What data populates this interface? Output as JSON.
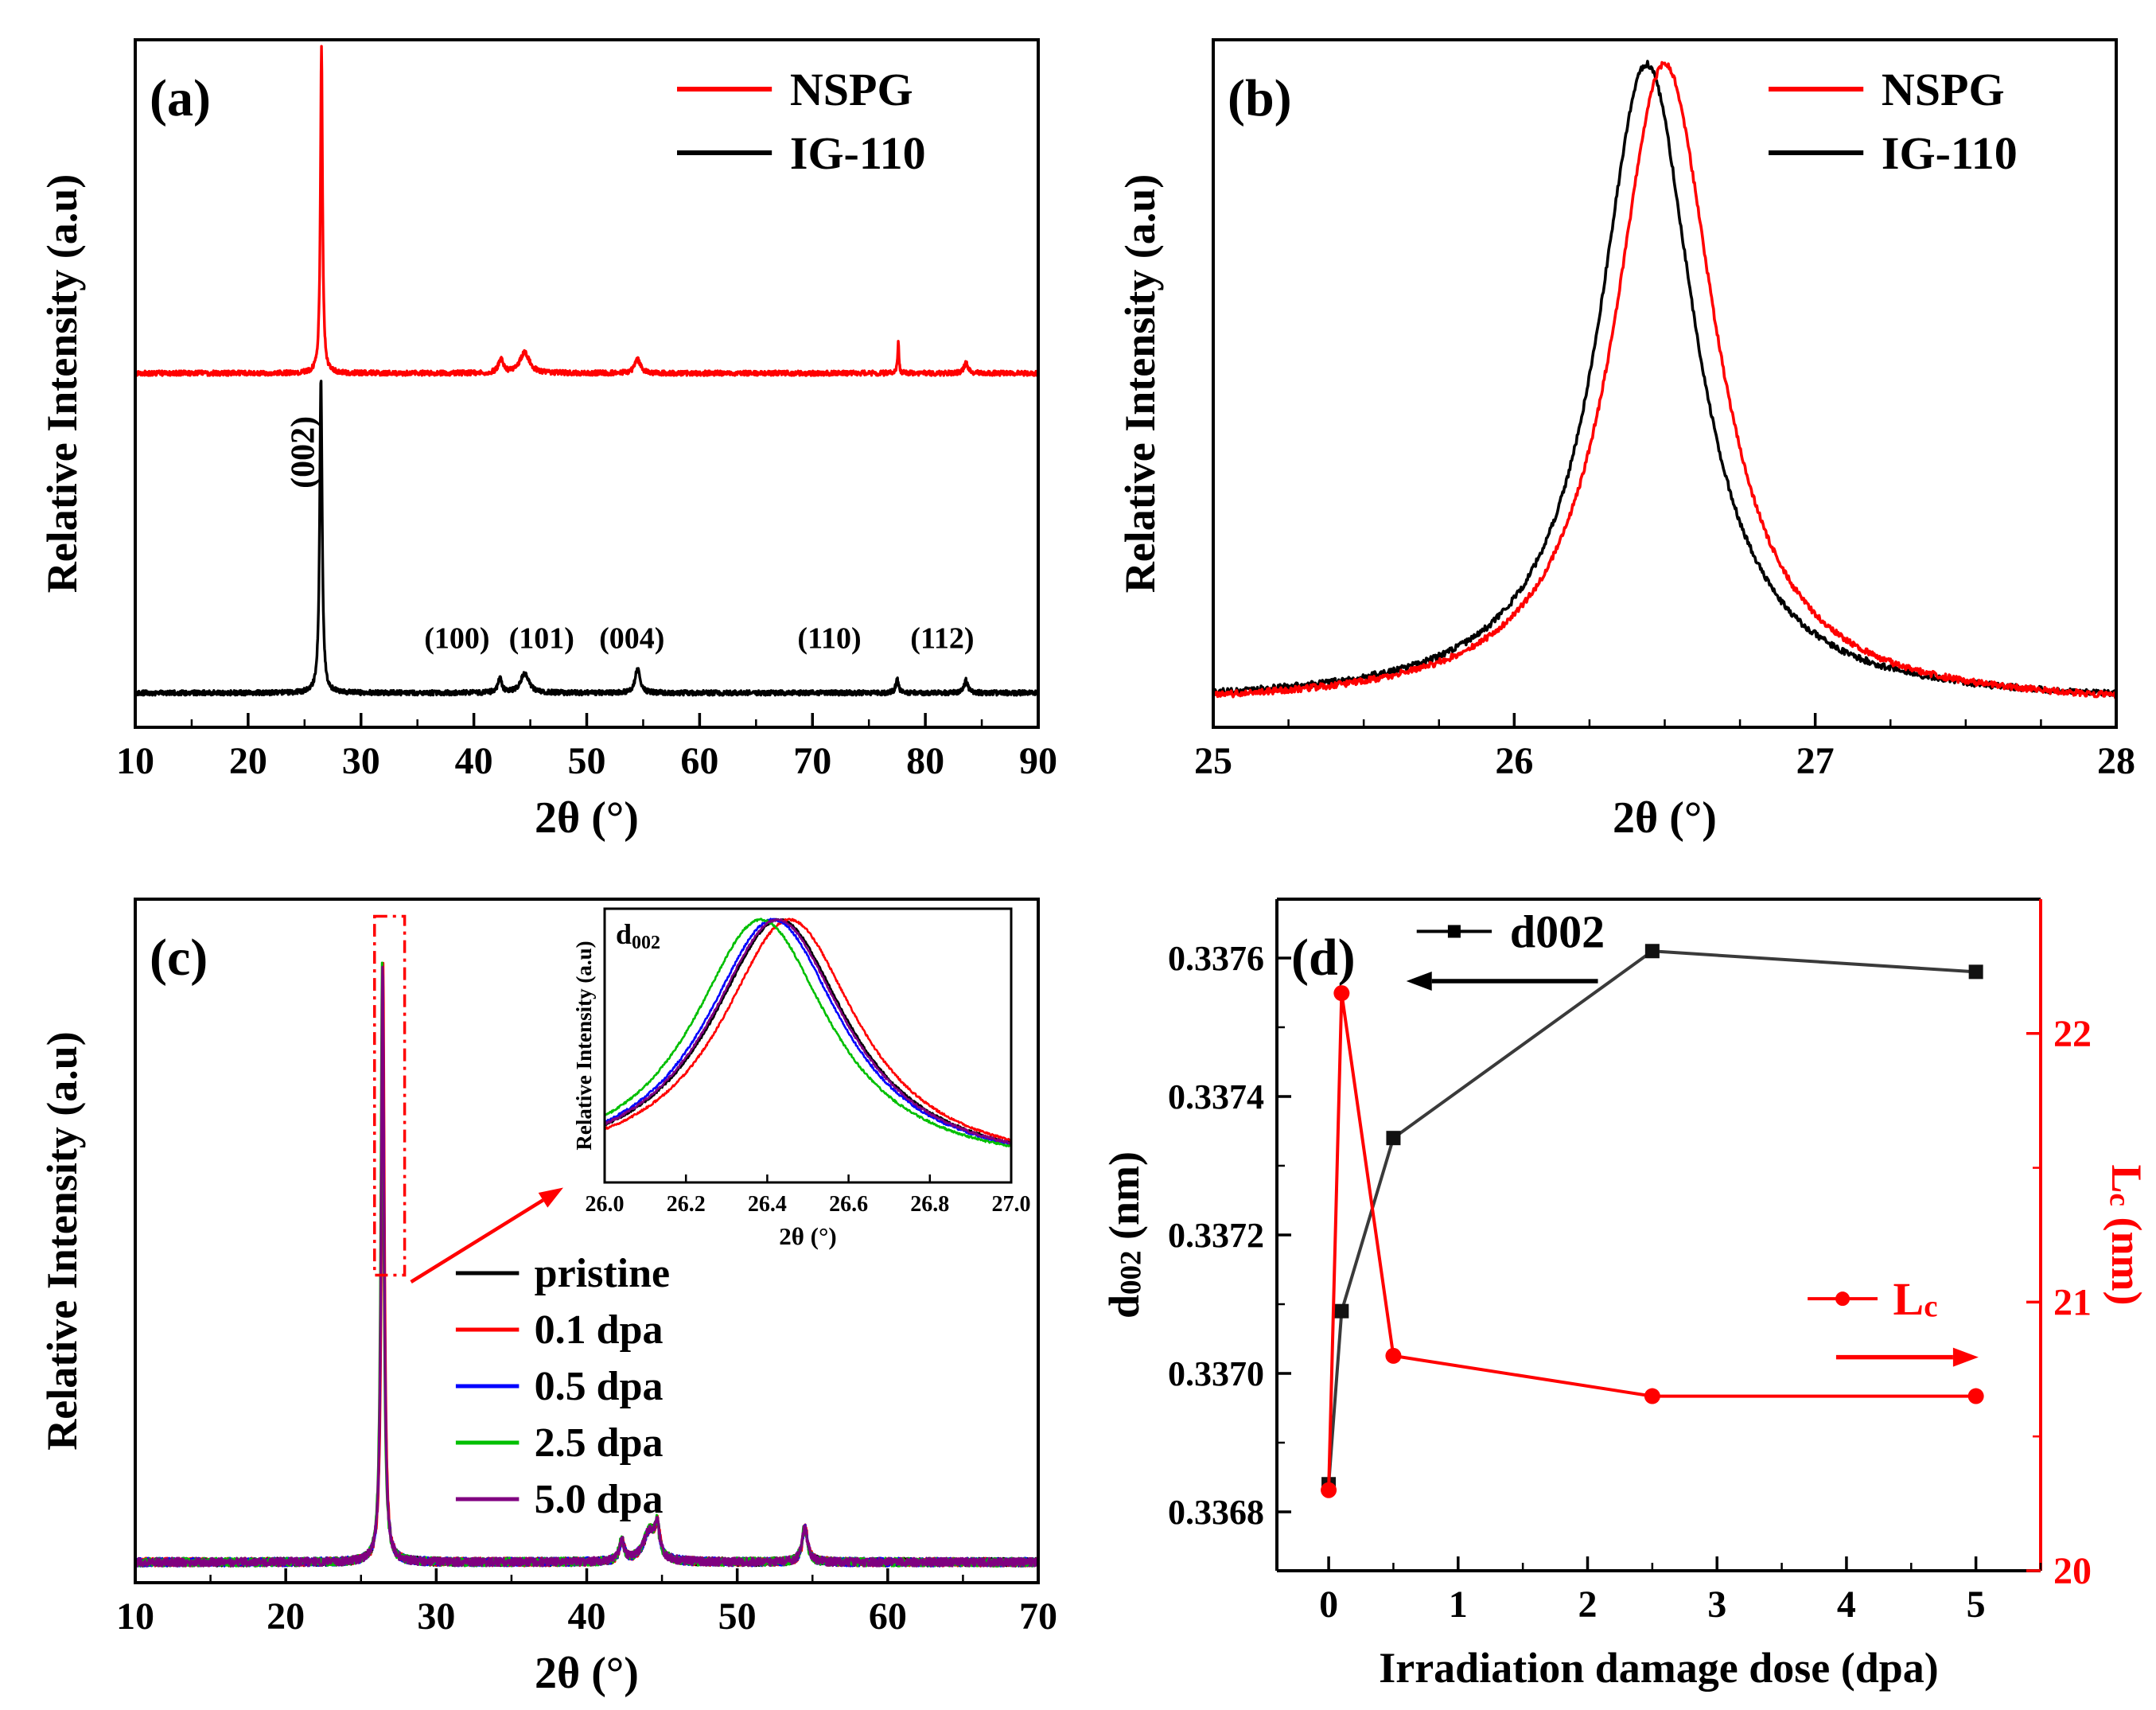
{
  "figure": {
    "background": "#ffffff"
  },
  "chart_data": [
    {
      "id": "a",
      "type": "line",
      "panel_label": "(a)",
      "xlabel": "2θ (°)",
      "ylabel": "Relative Intensity (a.u)",
      "xlim": [
        10,
        90
      ],
      "xticks": [
        10,
        20,
        30,
        40,
        50,
        60,
        70,
        80,
        90
      ],
      "minor_step": 5,
      "samples": 2400,
      "legend": [
        {
          "name": "NSPG",
          "color": "#ff0000"
        },
        {
          "name": "IG-110",
          "color": "#000000"
        }
      ],
      "series": [
        {
          "name": "IG-110",
          "color": "#000000",
          "offset": 0.05,
          "noise": 0.0035,
          "peaks": [
            {
              "c": 26.45,
              "h": 0.46,
              "g": 0.13
            },
            {
              "c": 42.3,
              "h": 0.022,
              "g": 0.2
            },
            {
              "c": 44.5,
              "h": 0.028,
              "g": 0.45
            },
            {
              "c": 54.5,
              "h": 0.035,
              "g": 0.25
            },
            {
              "c": 77.5,
              "h": 0.02,
              "g": 0.15
            },
            {
              "c": 83.6,
              "h": 0.018,
              "g": 0.2
            }
          ]
        },
        {
          "name": "NSPG",
          "color": "#ff0000",
          "offset": 0.515,
          "noise": 0.0035,
          "peaks": [
            {
              "c": 26.5,
              "h": 0.475,
              "g": 0.11
            },
            {
              "c": 42.4,
              "h": 0.02,
              "g": 0.25
            },
            {
              "c": 44.5,
              "h": 0.03,
              "g": 0.5
            },
            {
              "c": 54.5,
              "h": 0.02,
              "g": 0.3
            },
            {
              "c": 77.6,
              "h": 0.045,
              "g": 0.07
            },
            {
              "c": 83.6,
              "h": 0.015,
              "g": 0.2
            }
          ]
        }
      ],
      "peak_labels": [
        {
          "text": "(002)",
          "x": 24.9,
          "yfrac": 0.4,
          "rotate": -90
        },
        {
          "text": "(100)",
          "x": 38.5,
          "yfrac": 0.115
        },
        {
          "text": "(101)",
          "x": 46.0,
          "yfrac": 0.115
        },
        {
          "text": "(004)",
          "x": 54.0,
          "yfrac": 0.115
        },
        {
          "text": "(110)",
          "x": 71.5,
          "yfrac": 0.115
        },
        {
          "text": "(112)",
          "x": 81.5,
          "yfrac": 0.115
        }
      ]
    },
    {
      "id": "b",
      "type": "line",
      "panel_label": "(b)",
      "xlabel": "2θ (°)",
      "ylabel": "Relative Intensity (a.u)",
      "xlim": [
        25,
        28
      ],
      "xticks": [
        25,
        26,
        27,
        28
      ],
      "minor_step": 0.25,
      "samples": 1000,
      "legend": [
        {
          "name": "NSPG",
          "color": "#ff0000"
        },
        {
          "name": "IG-110",
          "color": "#000000"
        }
      ],
      "series": [
        {
          "name": "IG-110",
          "color": "#000000",
          "offset": 0.035,
          "noise": 0.0045,
          "peaks": [
            {
              "c": 26.44,
              "h": 0.93,
              "g": 0.195
            }
          ]
        },
        {
          "name": "NSPG",
          "color": "#ff0000",
          "offset": 0.03,
          "noise": 0.0045,
          "peaks": [
            {
              "c": 26.5,
              "h": 0.935,
              "g": 0.205
            }
          ]
        }
      ]
    },
    {
      "id": "c",
      "type": "line",
      "panel_label": "(c)",
      "xlabel": "2θ (°)",
      "ylabel": "Relative Intensity (a.u)",
      "xlim": [
        10,
        70
      ],
      "xticks": [
        10,
        20,
        30,
        40,
        50,
        60,
        70
      ],
      "minor_step": 5,
      "samples": 2400,
      "offset": 0.03,
      "noise": 0.006,
      "peaks": [
        {
          "c": 26.45,
          "h": 0.875,
          "g": 0.115
        },
        {
          "c": 42.35,
          "h": 0.03,
          "g": 0.2
        },
        {
          "c": 44.2,
          "h": 0.045,
          "g": 0.5
        },
        {
          "c": 44.7,
          "h": 0.04,
          "g": 0.17
        },
        {
          "c": 54.5,
          "h": 0.05,
          "g": 0.22
        }
      ],
      "series": [
        {
          "name": "pristine",
          "color": "#000000",
          "dx": 0
        },
        {
          "name": "0.1 dpa",
          "color": "#ff0000",
          "dx": 0.02
        },
        {
          "name": "0.5 dpa",
          "color": "#0000ff",
          "dx": -0.015
        },
        {
          "name": "2.5 dpa",
          "color": "#00bf00",
          "dx": -0.045
        },
        {
          "name": "5.0 dpa",
          "color": "#800080",
          "dx": -0.02
        }
      ],
      "highlight_box": {
        "x1": 25.9,
        "x2": 27.9,
        "top_frac": 0.975,
        "bottom_frac": 0.45,
        "color": "#ff0000"
      },
      "inset": {
        "corner_label": "d_{002}",
        "xlabel": "2θ (°)",
        "ylabel": "Relative Intensity (a.u)",
        "xlim": [
          26,
          27
        ],
        "xticks": [
          26.0,
          26.2,
          26.4,
          26.6,
          26.8,
          27.0
        ],
        "g": 0.205,
        "h": 0.92,
        "offset": 0.04,
        "noise": 0.004,
        "series": [
          {
            "name": "pristine",
            "color": "#000000",
            "c": 26.43
          },
          {
            "name": "0.1 dpa",
            "color": "#ff0000",
            "c": 26.455
          },
          {
            "name": "0.5 dpa",
            "color": "#0000ff",
            "c": 26.415
          },
          {
            "name": "2.5 dpa",
            "color": "#00bf00",
            "c": 26.385
          },
          {
            "name": "5.0 dpa",
            "color": "#800080",
            "c": 26.425
          }
        ]
      }
    },
    {
      "id": "d",
      "type": "dual-axis-line-scatter",
      "panel_label": "(d)",
      "xlabel": "Irradiation damage dose (dpa)",
      "x": [
        0,
        0.1,
        0.5,
        2.5,
        5
      ],
      "xlim": [
        -0.4,
        5.5
      ],
      "xticks": [
        0,
        1,
        2,
        3,
        4,
        5
      ],
      "x_minor_step": 0.5,
      "left_axis": {
        "label": "d_{002} (nm)",
        "color": "#000000",
        "ticks": [
          0.3368,
          0.337,
          0.3372,
          0.3374,
          0.3376
        ],
        "minor_step": 0.0001,
        "lim": [
          0.336715,
          0.337685
        ],
        "decimals": 4
      },
      "right_axis": {
        "label": "L_{c} (nm)",
        "color": "#ff0000",
        "ticks": [
          20,
          21,
          22
        ],
        "minor_step": 0.5,
        "lim": [
          20,
          22.5
        ],
        "decimals": 0
      },
      "series": [
        {
          "name": "d002",
          "axis": "left",
          "color": "#111111",
          "line_color": "#3a3a3a",
          "marker": "square",
          "values": [
            0.33684,
            0.33709,
            0.33734,
            0.33761,
            0.33758
          ]
        },
        {
          "name": "Lc",
          "axis": "right",
          "color": "#ff0000",
          "line_color": "#ff0000",
          "marker": "circle",
          "values": [
            20.3,
            22.15,
            20.8,
            20.65,
            20.65
          ]
        }
      ],
      "annotations": {
        "d002": {
          "label": "d002",
          "color": "#000000",
          "line_x1": 0.68,
          "line_x2": 1.26,
          "marker_x": 0.97,
          "text_x": 1.4,
          "yfrac": 0.952,
          "arrow_x1": 2.08,
          "arrow_x2": 0.6,
          "arrow_yfrac": 0.878
        },
        "lc": {
          "label": "L_{c}",
          "color": "#ff0000",
          "line_x1": 3.7,
          "line_x2": 4.24,
          "marker_x": 3.97,
          "text_x": 4.36,
          "yfrac": 0.405,
          "arrow_x1": 3.92,
          "arrow_x2": 5.02,
          "arrow_yfrac": 0.318
        }
      }
    }
  ]
}
